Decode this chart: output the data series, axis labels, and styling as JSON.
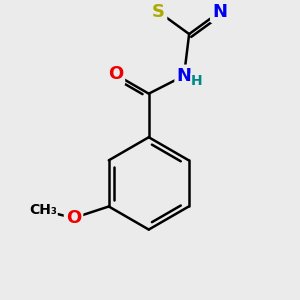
{
  "background_color": "#ebebeb",
  "atom_colors": {
    "C": "#000000",
    "N": "#0000ee",
    "O": "#ee0000",
    "S": "#aaaa00",
    "H": "#008888"
  },
  "bond_color": "#000000",
  "bond_width": 1.8,
  "font_size_atom": 13,
  "font_size_small": 10
}
